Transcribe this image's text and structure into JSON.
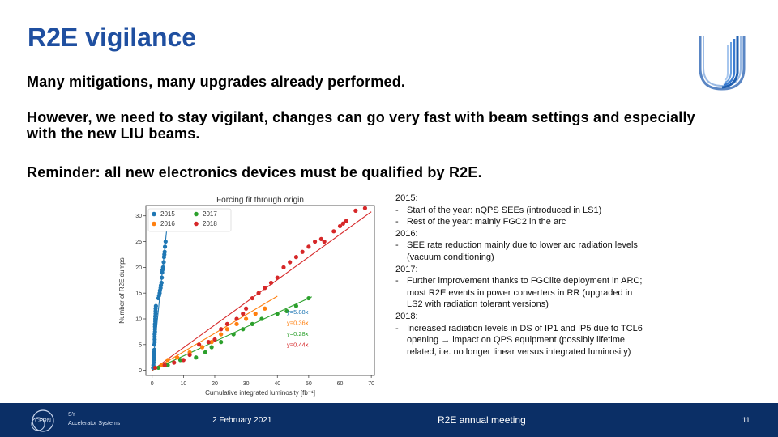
{
  "slide": {
    "title": "R2E vigilance",
    "paragraphs": [
      "Many mitigations, many upgrades already performed.",
      "However, we need to stay vigilant, changes can go very fast with beam settings and especially with the new LIU beams.",
      "Reminder: all new electronics devices must be qualified by R2E."
    ],
    "notes": [
      {
        "kind": "year",
        "text": "2015:"
      },
      {
        "kind": "bullet",
        "text": "Start of the year: nQPS SEEs (introduced in LS1)"
      },
      {
        "kind": "bullet",
        "text": "Rest of the year: mainly FGC2 in the arc"
      },
      {
        "kind": "year",
        "text": "2016:"
      },
      {
        "kind": "bullet",
        "text": "SEE rate reduction mainly due to lower arc radiation levels (vacuum conditioning)"
      },
      {
        "kind": "year",
        "text": "2017:"
      },
      {
        "kind": "bullet",
        "text": "Further improvement thanks to FGClite deployment in ARC; most R2E events in power converters in RR (upgraded in LS2 with radiation tolerant versions)"
      },
      {
        "kind": "year",
        "text": "2018:"
      },
      {
        "kind": "bullet",
        "text": "Increased radiation levels in DS of IP1 and IP5 due to TCL6 opening → impact on QPS equipment (possibly lifetime related, i.e. no longer linear versus integrated luminosity)"
      }
    ]
  },
  "footer": {
    "org_lines": [
      "SY",
      "Accelerator Systems"
    ],
    "date": "2 February 2021",
    "meeting": "R2E annual meeting",
    "page": "11"
  },
  "colors": {
    "title": "#1f4fa0",
    "footer_bg": "#0b2f66",
    "s2015": "#1f77b4",
    "s2016": "#ff7f0e",
    "s2017": "#2ca02c",
    "s2018": "#d62728"
  },
  "chart_data": {
    "type": "scatter",
    "title": "Forcing fit through origin",
    "xlabel": "Cumulative integrated luminosity [fb⁻¹]",
    "ylabel": "Number of R2E dumps",
    "xlim": [
      -2,
      71
    ],
    "ylim": [
      -1,
      32
    ],
    "xticks": [
      0,
      10,
      20,
      30,
      40,
      50,
      60,
      70
    ],
    "yticks": [
      0,
      5,
      10,
      15,
      20,
      25,
      30
    ],
    "grid": false,
    "legend_placement": "top-left",
    "series": [
      {
        "name": "2015",
        "color": "#1f77b4",
        "slope_label": "y=5.88x",
        "slope": 5.88,
        "fit_xmax": 4.8,
        "points": [
          [
            0.3,
            0.5
          ],
          [
            0.4,
            1
          ],
          [
            0.5,
            1.5
          ],
          [
            0.5,
            2
          ],
          [
            0.5,
            2.5
          ],
          [
            0.6,
            3
          ],
          [
            0.6,
            3.5
          ],
          [
            0.7,
            4
          ],
          [
            0.7,
            5
          ],
          [
            0.8,
            5.5
          ],
          [
            0.8,
            6
          ],
          [
            0.8,
            6.5
          ],
          [
            0.8,
            7
          ],
          [
            0.9,
            7.5
          ],
          [
            0.9,
            8
          ],
          [
            0.9,
            8.5
          ],
          [
            0.9,
            9
          ],
          [
            1,
            9.5
          ],
          [
            1,
            10
          ],
          [
            1,
            10.5
          ],
          [
            1.1,
            11
          ],
          [
            1.1,
            11.5
          ],
          [
            1.1,
            12
          ],
          [
            1.2,
            12.5
          ],
          [
            2,
            14
          ],
          [
            2.2,
            14.5
          ],
          [
            2.4,
            15
          ],
          [
            2.5,
            15.5
          ],
          [
            2.7,
            16
          ],
          [
            2.8,
            16.5
          ],
          [
            3,
            17
          ],
          [
            3.1,
            18
          ],
          [
            3.2,
            19
          ],
          [
            3.3,
            19.5
          ],
          [
            3.5,
            20
          ],
          [
            3.7,
            21
          ],
          [
            3.8,
            22
          ],
          [
            3.9,
            22.5
          ],
          [
            4,
            23
          ],
          [
            4.1,
            24
          ],
          [
            4.3,
            25
          ]
        ]
      },
      {
        "name": "2016",
        "color": "#ff7f0e",
        "slope_label": "y=0.36x",
        "slope": 0.36,
        "fit_xmax": 40,
        "points": [
          [
            3,
            1
          ],
          [
            5,
            2
          ],
          [
            8,
            2.5
          ],
          [
            12,
            3.5
          ],
          [
            16,
            4.5
          ],
          [
            19,
            5.5
          ],
          [
            22,
            7
          ],
          [
            24,
            8
          ],
          [
            27,
            9
          ],
          [
            30,
            10
          ],
          [
            33,
            11
          ],
          [
            36,
            12
          ]
        ]
      },
      {
        "name": "2017",
        "color": "#2ca02c",
        "slope_label": "y=0.28x",
        "slope": 0.28,
        "fit_xmax": 51,
        "points": [
          [
            2,
            0.5
          ],
          [
            5,
            1
          ],
          [
            9,
            2
          ],
          [
            14,
            2.5
          ],
          [
            17,
            3.5
          ],
          [
            19,
            4.5
          ],
          [
            22,
            5.5
          ],
          [
            26,
            7
          ],
          [
            29,
            8
          ],
          [
            32,
            9
          ],
          [
            35,
            10
          ],
          [
            40,
            11
          ],
          [
            43,
            11.5
          ],
          [
            46,
            12.5
          ],
          [
            50,
            14
          ]
        ]
      },
      {
        "name": "2018",
        "color": "#d62728",
        "slope_label": "y=0.44x",
        "slope": 0.44,
        "fit_xmax": 70,
        "points": [
          [
            1,
            0.5
          ],
          [
            4,
            1
          ],
          [
            7,
            1.5
          ],
          [
            10,
            2
          ],
          [
            12,
            3
          ],
          [
            15,
            5
          ],
          [
            18,
            5.5
          ],
          [
            20,
            6
          ],
          [
            22,
            8
          ],
          [
            24,
            9
          ],
          [
            27,
            10
          ],
          [
            29,
            11
          ],
          [
            30,
            12
          ],
          [
            32,
            14
          ],
          [
            34,
            15
          ],
          [
            36,
            16
          ],
          [
            38,
            17
          ],
          [
            40,
            18
          ],
          [
            42,
            20
          ],
          [
            44,
            21
          ],
          [
            46,
            22
          ],
          [
            48,
            23
          ],
          [
            50,
            24
          ],
          [
            52,
            25
          ],
          [
            54,
            25.5
          ],
          [
            55,
            25
          ],
          [
            58,
            27
          ],
          [
            60,
            28
          ],
          [
            61,
            28.5
          ],
          [
            62,
            29
          ],
          [
            65,
            31
          ],
          [
            68,
            31.5
          ]
        ]
      }
    ]
  }
}
